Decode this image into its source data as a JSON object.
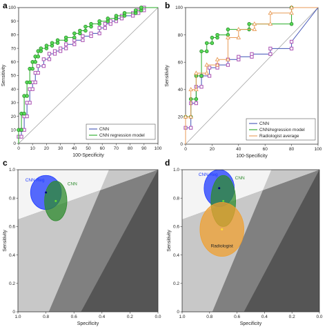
{
  "panels": [
    {
      "letter": "a"
    },
    {
      "letter": "b"
    },
    {
      "letter": "c"
    },
    {
      "letter": "d"
    }
  ],
  "colors": {
    "cnn": "#3f51b5",
    "reg": "#22aa22",
    "reg_marker": "#57d957",
    "cnn_marker": "#b05db8",
    "rad": "#e89a55",
    "diag": "#999999",
    "gray_dark": "#555555",
    "gray_mid": "#808080",
    "gray_light": "#c8c8c8",
    "ell_cnn": "#1f3bff",
    "ell_reg": "#2e8b2e",
    "ell_rad": "#f0a030"
  },
  "chart_data": [
    {
      "type": "line",
      "panel": "a",
      "xlabel": "100-Specificity",
      "ylabel": "Sensitivity",
      "xlim": [
        0,
        100
      ],
      "ylim": [
        0,
        100
      ],
      "xticks": [
        0,
        10,
        20,
        30,
        40,
        50,
        60,
        70,
        80,
        90,
        100
      ],
      "yticks": [
        0,
        10,
        20,
        30,
        40,
        50,
        60,
        70,
        80,
        90,
        100
      ],
      "legend": [
        "CNN",
        "CNN regression model"
      ],
      "legend_position": "bottom-right",
      "series": [
        {
          "name": "CNN",
          "color": "cnn",
          "marker": "square",
          "marker_color": "cnn_marker",
          "x": [
            0,
            0,
            2,
            2,
            4,
            4,
            6,
            6,
            8,
            8,
            10,
            10,
            12,
            12,
            14,
            14,
            18,
            18,
            22,
            22,
            26,
            26,
            30,
            30,
            34,
            34,
            40,
            40,
            46,
            46,
            52,
            52,
            58,
            58,
            62,
            62,
            66,
            66,
            70,
            70,
            74,
            74,
            82,
            82,
            86,
            86,
            90,
            90,
            100
          ],
          "y": [
            0,
            5,
            5,
            10,
            10,
            20,
            20,
            30,
            30,
            40,
            40,
            45,
            45,
            52,
            52,
            57,
            57,
            62,
            62,
            66,
            66,
            68,
            68,
            70,
            70,
            73,
            73,
            76,
            76,
            79,
            79,
            81,
            81,
            85,
            85,
            88,
            88,
            90,
            90,
            92,
            92,
            94,
            94,
            96,
            96,
            98,
            98,
            100,
            100
          ]
        },
        {
          "name": "CNN regression model",
          "color": "reg",
          "marker": "circle",
          "marker_color": "reg_marker",
          "x": [
            0,
            0,
            2,
            2,
            4,
            4,
            6,
            6,
            8,
            8,
            10,
            10,
            12,
            12,
            14,
            14,
            16,
            16,
            20,
            20,
            24,
            24,
            28,
            28,
            34,
            34,
            40,
            40,
            44,
            44,
            48,
            48,
            52,
            52,
            58,
            58,
            64,
            64,
            70,
            70,
            76,
            76,
            84,
            84,
            88,
            88,
            100
          ],
          "y": [
            0,
            10,
            10,
            22,
            22,
            35,
            35,
            45,
            45,
            55,
            55,
            60,
            60,
            64,
            64,
            68,
            68,
            70,
            70,
            72,
            72,
            74,
            74,
            76,
            76,
            78,
            78,
            81,
            81,
            83,
            83,
            86,
            86,
            88,
            88,
            90,
            90,
            92,
            92,
            94,
            94,
            96,
            96,
            98,
            98,
            100,
            100
          ]
        }
      ]
    },
    {
      "type": "line",
      "panel": "b",
      "xlabel": "100-Specificity",
      "ylabel": "Sensitivity",
      "xlim": [
        0,
        100
      ],
      "ylim": [
        0,
        100
      ],
      "xticks": [
        0,
        20,
        40,
        60,
        80,
        100
      ],
      "yticks": [
        0,
        20,
        40,
        60,
        80,
        100
      ],
      "legend": [
        "CNN",
        "CNN/regression model",
        "Radiologist average"
      ],
      "legend_position": "bottom-right",
      "series": [
        {
          "name": "CNN",
          "color": "cnn",
          "marker": "square",
          "marker_color": "cnn_marker",
          "x": [
            0,
            0,
            4,
            4,
            8,
            8,
            12,
            12,
            18,
            18,
            24,
            24,
            32,
            32,
            40,
            40,
            50,
            50,
            64,
            64,
            80,
            80,
            100
          ],
          "y": [
            0,
            12,
            12,
            30,
            30,
            42,
            42,
            50,
            50,
            56,
            56,
            58,
            58,
            62,
            62,
            64,
            64,
            66,
            66,
            70,
            70,
            75,
            100
          ]
        },
        {
          "name": "CNN/regression model",
          "color": "reg",
          "marker": "circle",
          "marker_color": "reg_marker",
          "x": [
            0,
            0,
            4,
            4,
            8,
            8,
            12,
            12,
            16,
            16,
            20,
            20,
            24,
            24,
            32,
            32,
            48,
            48,
            80,
            80,
            100
          ],
          "y": [
            0,
            20,
            20,
            33,
            33,
            50,
            50,
            68,
            68,
            74,
            74,
            78,
            78,
            80,
            80,
            84,
            84,
            88,
            88,
            100,
            100
          ]
        },
        {
          "name": "Radiologist average",
          "color": "rad",
          "marker": "triangle",
          "marker_color": "rad",
          "x": [
            0,
            0,
            4,
            4,
            8,
            8,
            16,
            16,
            24,
            24,
            32,
            32,
            40,
            40,
            52,
            52,
            64,
            64,
            80,
            80,
            100
          ],
          "y": [
            0,
            20,
            20,
            40,
            40,
            52,
            52,
            58,
            58,
            62,
            62,
            78,
            78,
            84,
            84,
            88,
            88,
            96,
            96,
            100,
            100
          ]
        }
      ]
    },
    {
      "type": "scatter",
      "panel": "c",
      "xlabel": "Specificity",
      "ylabel": "Sensitivity",
      "xlim": [
        1.0,
        0.0
      ],
      "ylim": [
        0,
        1.0
      ],
      "xticks": [
        1.0,
        0.8,
        0.6,
        0.4,
        0.2,
        0.0
      ],
      "yticks": [
        0,
        0.2,
        0.4,
        0.6,
        0.8,
        1.0
      ],
      "points": [
        {
          "label": "CNN Reg",
          "x": 0.8,
          "y": 0.84,
          "rx": 0.11,
          "ry": 0.12,
          "ellipse_color": "ell_cnn"
        },
        {
          "label": "CNN",
          "x": 0.73,
          "y": 0.78,
          "rx": 0.08,
          "ry": 0.14,
          "ellipse_color": "ell_reg"
        }
      ]
    },
    {
      "type": "scatter",
      "panel": "d",
      "xlabel": "Specificity",
      "ylabel": "Sensitivity",
      "xlim": [
        1.0,
        0.0
      ],
      "ylim": [
        0,
        1.0
      ],
      "xticks": [
        1.0,
        0.8,
        0.6,
        0.4,
        0.2,
        0.0
      ],
      "yticks": [
        0,
        0.2,
        0.4,
        0.6,
        0.8,
        1.0
      ],
      "points": [
        {
          "label": "CNN Reg",
          "x": 0.73,
          "y": 0.87,
          "rx": 0.11,
          "ry": 0.13,
          "ellipse_color": "ell_cnn"
        },
        {
          "label": "CNN",
          "x": 0.7,
          "y": 0.78,
          "rx": 0.09,
          "ry": 0.18,
          "ellipse_color": "ell_reg"
        },
        {
          "label": "Radiologist",
          "x": 0.71,
          "y": 0.58,
          "rx": 0.16,
          "ry": 0.19,
          "ellipse_color": "ell_rad"
        }
      ]
    }
  ]
}
